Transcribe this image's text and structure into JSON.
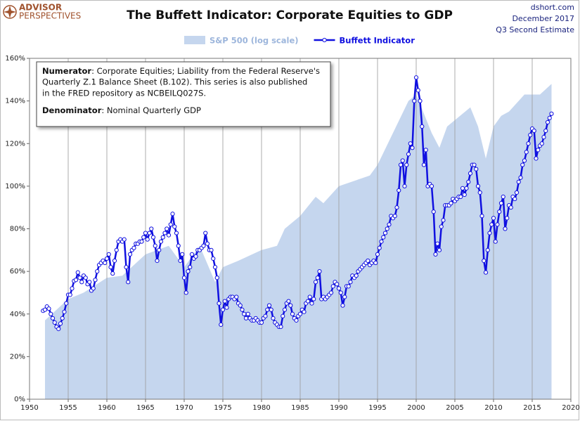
{
  "chart_data": {
    "type": "line",
    "title": "The Buffett Indicator: Corporate Equities to GDP",
    "logo": [
      "ADVISOR",
      "PERSPECTIVES"
    ],
    "source": "dshort.com",
    "date": "December 2017",
    "estimate": "Q3 Second Estimate",
    "annotation": {
      "numerator_label": "Numerator",
      "numerator_lines": [
        ": Corporate Equities; Liability from the Federal Reserve's",
        "Quarterly Z.1 Balance Sheet (B.102). This series is also published",
        "in the FRED repository  as NCBEILQ027S."
      ],
      "denominator_label": "Denominator",
      "denominator_text": ": Nominal Quarterly GDP"
    },
    "xlim": [
      1950,
      2020
    ],
    "xticks": [
      1950,
      1955,
      1960,
      1965,
      1970,
      1975,
      1980,
      1985,
      1990,
      1995,
      2000,
      2005,
      2010,
      2015,
      2020
    ],
    "ylim": [
      0,
      160
    ],
    "yticks": [
      {
        "value": 0,
        "label": "0%"
      },
      {
        "value": 20,
        "label": "20%"
      },
      {
        "value": 40,
        "label": "40%"
      },
      {
        "value": 60,
        "label": "60%"
      },
      {
        "value": 80,
        "label": "80%"
      },
      {
        "value": 100,
        "label": "100%"
      },
      {
        "value": 120,
        "label": "120%"
      },
      {
        "value": 140,
        "label": "140%"
      },
      {
        "value": 160,
        "label": "160%"
      }
    ],
    "vertical_grid": true,
    "series": [
      {
        "name": "S&P 500 (log scale)",
        "kind": "area",
        "color": "#c5d6ee",
        "x": [
          1952,
          1955,
          1957,
          1960,
          1962,
          1965,
          1968,
          1970,
          1972,
          1974,
          1975,
          1977,
          1980,
          1982,
          1983,
          1985,
          1987,
          1988,
          1990,
          1994,
          1995,
          1997,
          1999,
          2000,
          2002,
          2003,
          2004,
          2007,
          2008,
          2009,
          2010,
          2011,
          2012,
          2014,
          2016,
          2017.5
        ],
        "values": [
          37,
          47,
          50,
          57,
          58,
          68,
          72,
          62,
          72,
          55,
          62,
          65,
          70,
          72,
          80,
          86,
          95,
          92,
          100,
          105,
          110,
          125,
          140,
          143,
          125,
          118,
          128,
          137,
          128,
          113,
          128,
          133,
          135,
          143,
          143,
          148
        ]
      },
      {
        "name": "Buffett Indicator",
        "kind": "line",
        "color": "#1010e0",
        "x": [
          1951.75,
          1952,
          1952.25,
          1952.5,
          1952.75,
          1953,
          1953.25,
          1953.5,
          1953.75,
          1954,
          1954.25,
          1954.5,
          1954.75,
          1955,
          1955.25,
          1955.5,
          1955.75,
          1956,
          1956.25,
          1956.5,
          1956.75,
          1957,
          1957.25,
          1957.5,
          1957.75,
          1958,
          1958.25,
          1958.5,
          1958.75,
          1959,
          1959.25,
          1959.5,
          1959.75,
          1960,
          1960.25,
          1960.5,
          1960.75,
          1961,
          1961.25,
          1961.5,
          1961.75,
          1962,
          1962.25,
          1962.5,
          1962.75,
          1963,
          1963.25,
          1963.5,
          1963.75,
          1964,
          1964.25,
          1964.5,
          1964.75,
          1965,
          1965.25,
          1965.5,
          1965.75,
          1966,
          1966.25,
          1966.5,
          1966.75,
          1967,
          1967.25,
          1967.5,
          1967.75,
          1968,
          1968.25,
          1968.5,
          1968.75,
          1969,
          1969.25,
          1969.5,
          1969.75,
          1970,
          1970.25,
          1970.5,
          1970.75,
          1971,
          1971.25,
          1971.5,
          1971.75,
          1972,
          1972.25,
          1972.5,
          1972.75,
          1973,
          1973.25,
          1973.5,
          1973.75,
          1974,
          1974.25,
          1974.5,
          1974.75,
          1975,
          1975.25,
          1975.5,
          1975.75,
          1976,
          1976.25,
          1976.5,
          1976.75,
          1977,
          1977.25,
          1977.5,
          1977.75,
          1978,
          1978.25,
          1978.5,
          1978.75,
          1979,
          1979.25,
          1979.5,
          1979.75,
          1980,
          1980.25,
          1980.5,
          1980.75,
          1981,
          1981.25,
          1981.5,
          1981.75,
          1982,
          1982.25,
          1982.5,
          1982.75,
          1983,
          1983.25,
          1983.5,
          1983.75,
          1984,
          1984.25,
          1984.5,
          1984.75,
          1985,
          1985.25,
          1985.5,
          1985.75,
          1986,
          1986.25,
          1986.5,
          1986.75,
          1987,
          1987.25,
          1987.5,
          1987.75,
          1988,
          1988.25,
          1988.5,
          1988.75,
          1989,
          1989.25,
          1989.5,
          1989.75,
          1990,
          1990.25,
          1990.5,
          1990.75,
          1991,
          1991.25,
          1991.5,
          1991.75,
          1992,
          1992.25,
          1992.5,
          1992.75,
          1993,
          1993.25,
          1993.5,
          1993.75,
          1994,
          1994.25,
          1994.5,
          1994.75,
          1995,
          1995.25,
          1995.5,
          1995.75,
          1996,
          1996.25,
          1996.5,
          1996.75,
          1997,
          1997.25,
          1997.5,
          1997.75,
          1998,
          1998.25,
          1998.5,
          1998.75,
          1999,
          1999.25,
          1999.5,
          1999.75,
          2000,
          2000.25,
          2000.5,
          2000.75,
          2001,
          2001.25,
          2001.5,
          2001.75,
          2002,
          2002.25,
          2002.5,
          2002.75,
          2003,
          2003.25,
          2003.5,
          2003.75,
          2004,
          2004.25,
          2004.5,
          2004.75,
          2005,
          2005.25,
          2005.5,
          2005.75,
          2006,
          2006.25,
          2006.5,
          2006.75,
          2007,
          2007.25,
          2007.5,
          2007.75,
          2008,
          2008.25,
          2008.5,
          2008.75,
          2009,
          2009.25,
          2009.5,
          2009.75,
          2010,
          2010.25,
          2010.5,
          2010.75,
          2011,
          2011.25,
          2011.5,
          2011.75,
          2012,
          2012.25,
          2012.5,
          2012.75,
          2013,
          2013.25,
          2013.5,
          2013.75,
          2014,
          2014.25,
          2014.5,
          2014.75,
          2015,
          2015.25,
          2015.5,
          2015.75,
          2016,
          2016.25,
          2016.5,
          2016.75,
          2017,
          2017.25,
          2017.5
        ],
        "values": [
          41.5,
          42,
          43.5,
          42.5,
          40,
          38,
          36,
          34,
          33,
          35.5,
          38,
          41,
          45,
          49,
          49,
          52,
          55.5,
          56,
          59.5,
          57,
          55,
          58,
          57,
          54,
          55,
          51,
          52,
          56,
          60,
          63,
          64,
          65,
          64,
          66,
          68,
          62,
          59,
          65,
          70,
          74,
          75,
          74,
          75,
          62,
          55,
          68,
          70,
          71,
          73,
          73,
          74,
          74,
          76,
          78,
          75,
          78,
          80,
          76,
          72,
          65,
          70,
          74,
          76,
          78,
          80,
          77,
          82,
          87,
          81,
          78,
          72,
          65,
          68,
          57,
          50,
          60,
          62,
          68,
          66,
          67,
          70,
          70,
          71,
          72,
          78,
          73,
          70,
          70,
          66,
          62,
          57,
          45,
          35,
          42,
          46,
          43,
          47,
          48,
          48,
          47,
          48,
          45,
          44,
          42,
          40,
          38,
          40,
          38,
          37,
          37,
          38,
          37,
          36,
          36,
          38,
          39,
          42,
          44,
          42,
          38,
          36,
          35,
          34,
          34,
          39,
          42,
          45,
          46,
          44,
          40,
          38,
          37,
          39,
          40,
          42,
          41,
          45,
          46,
          48,
          45,
          47,
          55,
          57,
          60,
          47,
          48,
          47,
          48,
          49,
          50,
          53,
          55,
          54,
          52,
          50,
          44,
          48,
          53,
          53,
          55,
          58,
          57,
          58,
          60,
          61,
          62,
          63,
          64,
          65,
          63,
          64,
          65,
          64,
          68,
          71,
          74,
          76,
          78,
          80,
          82,
          86,
          85,
          86,
          90,
          98,
          110,
          112,
          100,
          110,
          115,
          120,
          118,
          140,
          151,
          145,
          140,
          128,
          110,
          117,
          100,
          101,
          100,
          88,
          68,
          73,
          70,
          81,
          84,
          91,
          91,
          91,
          92,
          94,
          93,
          94,
          95,
          95,
          99,
          96,
          99,
          102,
          106,
          110,
          110,
          108,
          100,
          97,
          86,
          65,
          59.5,
          70,
          78,
          82,
          85,
          74,
          82,
          88,
          92,
          95,
          80,
          85,
          91,
          90,
          95,
          94,
          97,
          102,
          104,
          110,
          112,
          116,
          120,
          124,
          127,
          126,
          113,
          117,
          119,
          120,
          123,
          126,
          130,
          132,
          134
        ]
      }
    ]
  }
}
